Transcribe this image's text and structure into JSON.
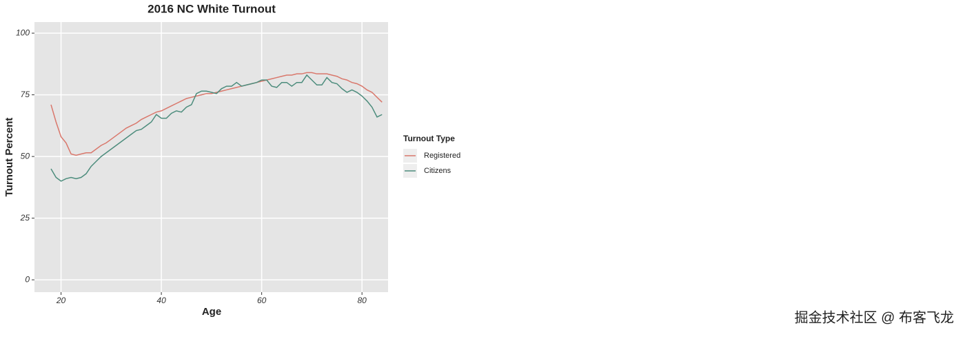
{
  "chart_data": {
    "type": "line",
    "title": "2016 NC White Turnout",
    "x_label": "Age",
    "y_label": "Turnout Percent",
    "x": [
      18,
      19,
      20,
      21,
      22,
      23,
      24,
      25,
      26,
      27,
      28,
      29,
      30,
      31,
      32,
      33,
      34,
      35,
      36,
      37,
      38,
      39,
      40,
      41,
      42,
      43,
      44,
      45,
      46,
      47,
      48,
      49,
      50,
      51,
      52,
      53,
      54,
      55,
      56,
      57,
      58,
      59,
      60,
      61,
      62,
      63,
      64,
      65,
      66,
      67,
      68,
      69,
      70,
      71,
      72,
      73,
      74,
      75,
      76,
      77,
      78,
      79,
      80,
      81,
      82,
      83,
      84
    ],
    "series": [
      {
        "name": "Registered",
        "color": "#d9776b",
        "values": [
          71,
          64,
          58,
          55.5,
          51,
          50.5,
          51,
          51.5,
          51.5,
          53,
          54.5,
          55.5,
          57,
          58.5,
          60,
          61.5,
          62.5,
          63.5,
          65,
          66,
          67,
          68,
          68.5,
          69.5,
          70.5,
          71.5,
          72.5,
          73.5,
          74,
          74.5,
          75,
          75.5,
          75.5,
          76,
          76.5,
          77,
          77.5,
          78,
          78.5,
          79,
          79.5,
          80,
          80.5,
          81,
          81.5,
          82,
          82.5,
          83,
          83,
          83.5,
          83.5,
          84,
          84,
          83.5,
          83.5,
          83.5,
          83,
          82.5,
          81.5,
          81,
          80,
          79.5,
          78.5,
          77,
          76,
          74,
          72
        ]
      },
      {
        "name": "Citizens",
        "color": "#4c8c7c",
        "values": [
          45,
          41.5,
          40,
          41,
          41.5,
          41,
          41.5,
          43,
          46,
          48,
          50,
          51.5,
          53,
          54.5,
          56,
          57.5,
          59,
          60.5,
          61,
          62.5,
          64,
          67,
          65.5,
          65.5,
          67.5,
          68.5,
          68,
          70,
          71,
          75.5,
          76.5,
          76.5,
          76,
          75.5,
          77.5,
          78.5,
          78.5,
          80,
          78.5,
          79,
          79.5,
          80,
          81,
          81,
          78.5,
          78,
          80,
          80,
          78.5,
          80,
          80,
          83,
          81,
          79,
          79,
          82,
          80,
          79.5,
          77.5,
          76,
          77,
          76,
          74.5,
          72.5,
          70,
          66,
          67
        ]
      }
    ],
    "xlim": [
      14.7,
      85.2
    ],
    "ylim": [
      -5,
      104.5
    ],
    "xticks": [
      20,
      40,
      60,
      80
    ],
    "yticks": [
      0,
      25,
      50,
      75,
      100
    ],
    "grid": true,
    "legend_title": "Turnout Type",
    "legend_position": "right",
    "watermark": "掘金技术社区 @ 布客飞龙"
  }
}
